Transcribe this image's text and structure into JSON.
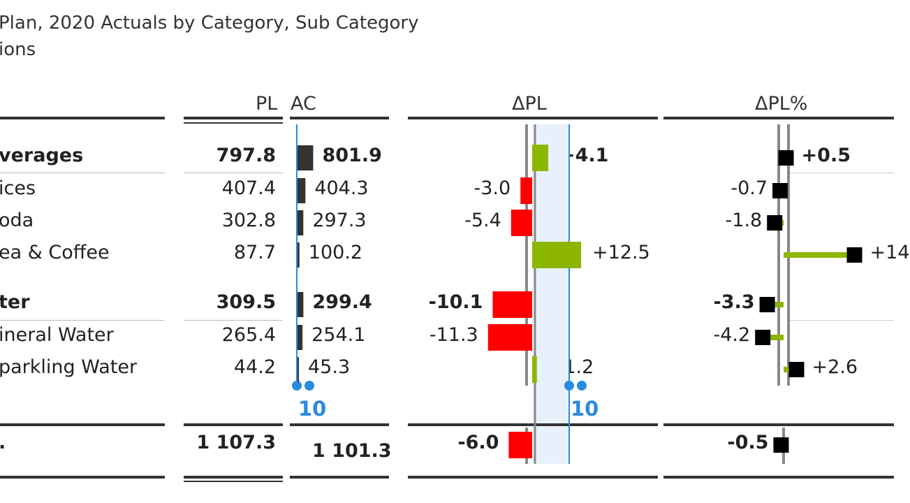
{
  "title": "Plan, 2020 Actuals by Category, Sub Category",
  "subtitle": "ions",
  "headers": {
    "pl": "PL",
    "ac": "AC",
    "dpl": "ΔPL",
    "dplpct": "ΔPL%"
  },
  "scale_markers": {
    "ac": "10",
    "dpl": "10"
  },
  "colors": {
    "positive": "#8db600",
    "negative": "#ff0000",
    "bar": "#333333",
    "marker": "#000000",
    "scale": "#2a8ae0",
    "band": "#e8f1fb"
  },
  "chart_data": {
    "type": "table",
    "rows": [
      {
        "label": "verages",
        "bold": true,
        "pl": 797.8,
        "ac": 801.9,
        "pl_text": "797.8",
        "ac_text": "801.9",
        "dpl": 4.1,
        "dpl_text": "+4.1",
        "dplpct": 0.5,
        "dplpct_text": "+0.5"
      },
      {
        "label": "ices",
        "bold": false,
        "pl": 407.4,
        "ac": 404.3,
        "pl_text": "407.4",
        "ac_text": "404.3",
        "dpl": -3.0,
        "dpl_text": "-3.0",
        "dplpct": -0.7,
        "dplpct_text": "-0.7"
      },
      {
        "label": "oda",
        "bold": false,
        "pl": 302.8,
        "ac": 297.3,
        "pl_text": "302.8",
        "ac_text": "297.3",
        "dpl": -5.4,
        "dpl_text": "-5.4",
        "dplpct": -1.8,
        "dplpct_text": "-1.8"
      },
      {
        "label": "ea & Coffee",
        "bold": false,
        "pl": 87.7,
        "ac": 100.2,
        "pl_text": "87.7",
        "ac_text": "100.2",
        "dpl": 12.5,
        "dpl_text": "+12.5",
        "dplpct": 14.3,
        "dplpct_text": "+14"
      },
      {
        "label": "ter",
        "bold": true,
        "pl": 309.5,
        "ac": 299.4,
        "pl_text": "309.5",
        "ac_text": "299.4",
        "dpl": -10.1,
        "dpl_text": "-10.1",
        "dplpct": -3.3,
        "dplpct_text": "-3.3"
      },
      {
        "label": "ineral Water",
        "bold": false,
        "pl": 265.4,
        "ac": 254.1,
        "pl_text": "265.4",
        "ac_text": "254.1",
        "dpl": -11.3,
        "dpl_text": "-11.3",
        "dplpct": -4.2,
        "dplpct_text": "-4.2"
      },
      {
        "label": "parkling Water",
        "bold": false,
        "pl": 44.2,
        "ac": 45.3,
        "pl_text": "44.2",
        "ac_text": "45.3",
        "dpl": 1.2,
        "dpl_text": "+1.2",
        "dplpct": 2.6,
        "dplpct_text": "+2.6"
      }
    ],
    "total": {
      "label": ".",
      "pl": 1107.3,
      "ac": 1101.3,
      "pl_text": "1 107.3",
      "ac_text": "1 101.3",
      "dpl": -6.0,
      "dpl_text": "-6.0",
      "dplpct": -0.5,
      "dplpct_text": "-0.5"
    }
  }
}
